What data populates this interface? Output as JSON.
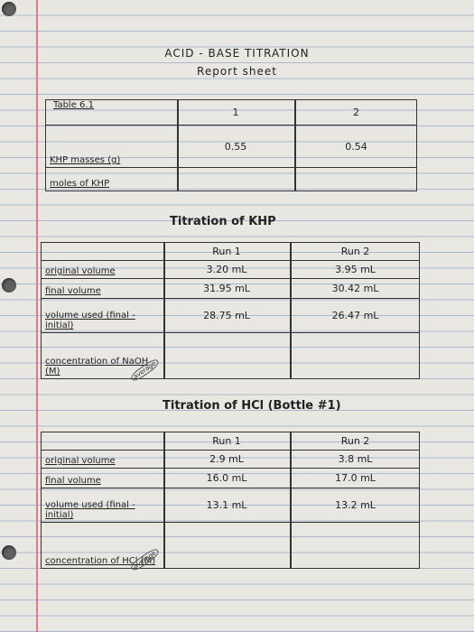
{
  "header": {
    "title": "ACID - BASE TITRATION",
    "subtitle": "Report sheet"
  },
  "sections": [
    {
      "caption": "Table 6.1",
      "columns": [
        "1",
        "2"
      ],
      "rows": [
        {
          "label": "KHP masses (g)",
          "cells": [
            "0.55",
            "0.54"
          ]
        },
        {
          "label": "moles of KHP"
        }
      ]
    },
    {
      "title": "Titration of KHP",
      "columns": [
        "Run 1",
        "Run 2"
      ],
      "rows": [
        {
          "label": "original volume",
          "cells": [
            "3.20 mL",
            "3.95 mL"
          ]
        },
        {
          "label": "final volume",
          "cells": [
            "31.95 mL",
            "30.42 mL"
          ]
        },
        {
          "label": "volume used (final - initial)",
          "cells": [
            "28.75 mL",
            "26.47 mL"
          ]
        },
        {
          "label": "concentration of NaOH (M)",
          "note": "average"
        }
      ]
    },
    {
      "title": "Titration of HCl (Bottle #1)",
      "columns": [
        "Run 1",
        "Run 2"
      ],
      "rows": [
        {
          "label": "original volume",
          "cells": [
            "2.9 mL",
            "3.8 mL"
          ]
        },
        {
          "label": "final volume",
          "cells": [
            "16.0 mL",
            "17.0 mL"
          ]
        },
        {
          "label": "volume used (final - initial)",
          "cells": [
            "13.1 mL",
            "13.2 mL"
          ]
        },
        {
          "label": "concentration of HCl (M)",
          "note": "average"
        }
      ]
    }
  ]
}
